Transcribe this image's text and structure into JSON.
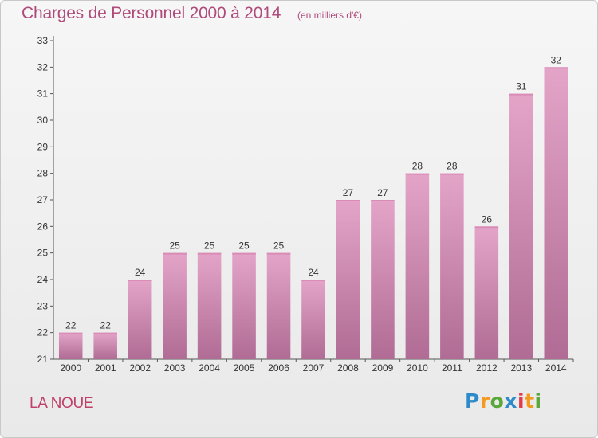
{
  "title": "Charges de Personnel 2000 à 2014",
  "subtitle": "(en milliers d'€)",
  "place": "LA NOUE",
  "logo": {
    "letters": [
      "P",
      "r",
      "o",
      "x",
      "i",
      "t",
      "i"
    ],
    "colors": [
      "#2e8bc9",
      "#f39a1f",
      "#5aa83a",
      "#2e8bc9",
      "#e23a4a",
      "#f39a1f",
      "#5aa83a"
    ]
  },
  "colors": {
    "bar_top": "#e4a4c8",
    "bar_bottom": "#b06c94",
    "title": "#b04a7a"
  },
  "chart_data": {
    "type": "bar",
    "categories": [
      "2000",
      "2001",
      "2002",
      "2003",
      "2004",
      "2005",
      "2006",
      "2007",
      "2008",
      "2009",
      "2010",
      "2011",
      "2012",
      "2013",
      "2014"
    ],
    "values": [
      22,
      22,
      24,
      25,
      25,
      25,
      25,
      24,
      27,
      27,
      28,
      28,
      26,
      31,
      32
    ],
    "ylim": [
      21,
      33
    ],
    "yticks": [
      21,
      22,
      23,
      24,
      25,
      26,
      27,
      28,
      29,
      30,
      31,
      32,
      33
    ],
    "grid": false
  }
}
